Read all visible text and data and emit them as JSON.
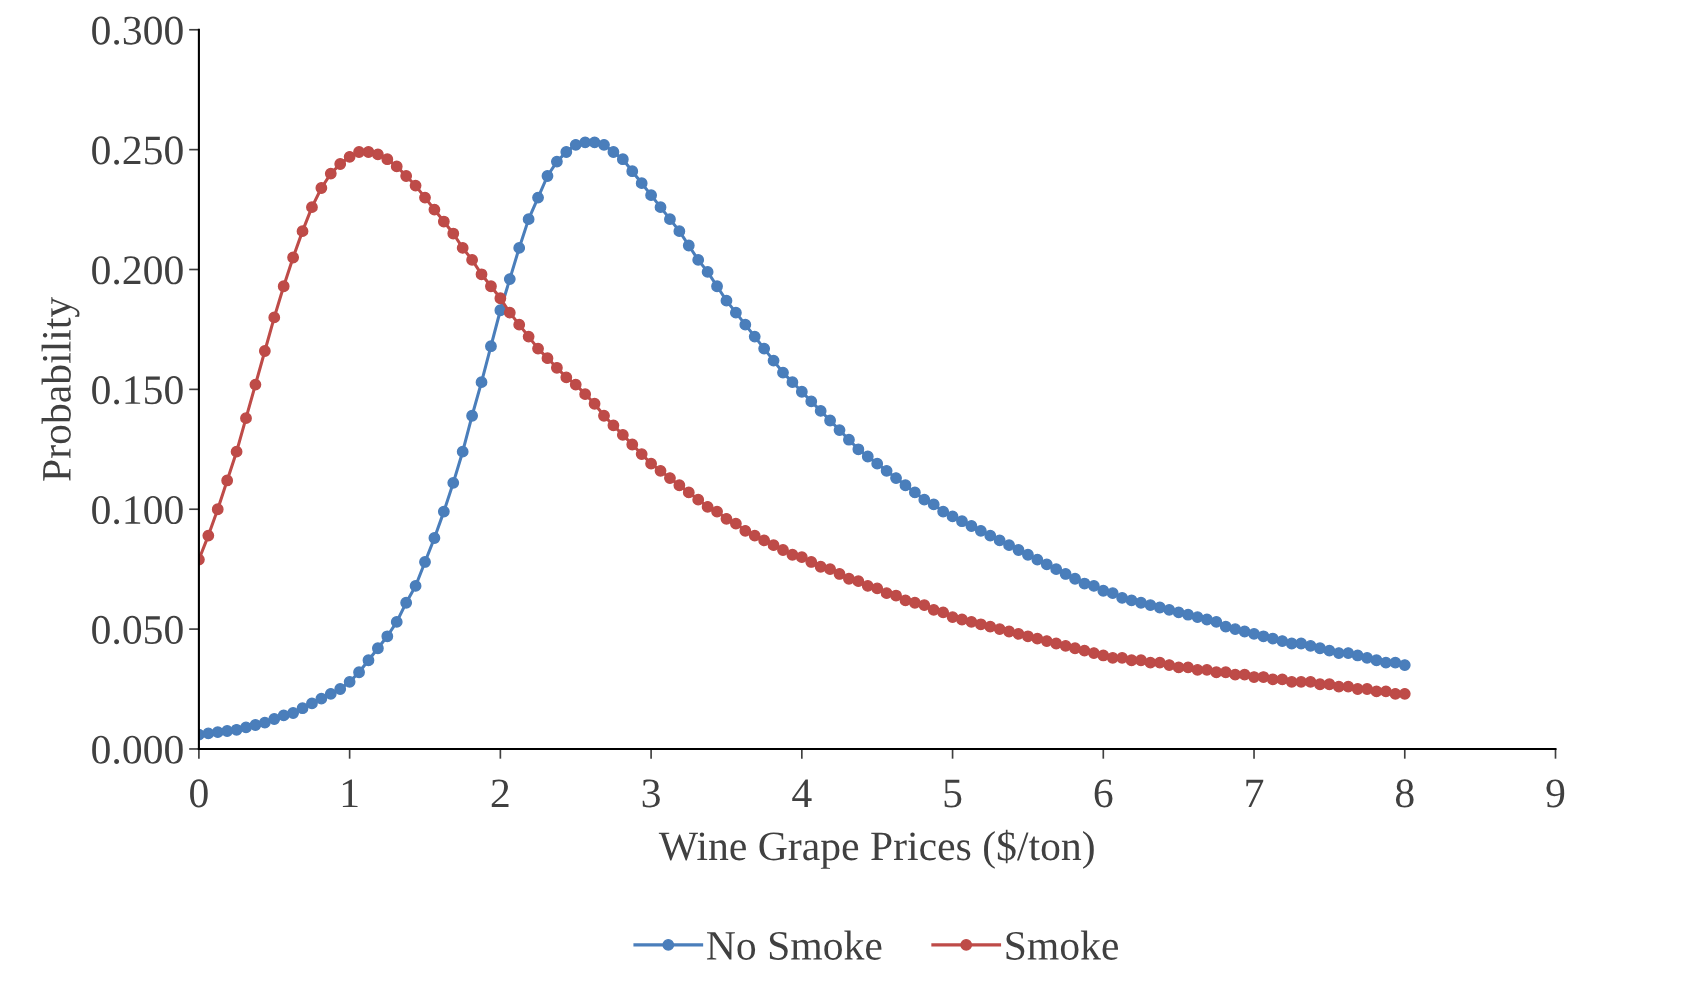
{
  "chart_data": {
    "type": "line",
    "xlabel": "Wine Grape Prices ($/ton)",
    "ylabel": "Probability",
    "x": [
      0,
      0.0625,
      0.125,
      0.1875,
      0.25,
      0.3125,
      0.375,
      0.4375,
      0.5,
      0.5625,
      0.625,
      0.6875,
      0.75,
      0.8125,
      0.875,
      0.9375,
      1,
      1.0625,
      1.125,
      1.1875,
      1.25,
      1.3125,
      1.375,
      1.4375,
      1.5,
      1.5625,
      1.625,
      1.6875,
      1.75,
      1.8125,
      1.875,
      1.9375,
      2,
      2.0625,
      2.125,
      2.1875,
      2.25,
      2.3125,
      2.375,
      2.4375,
      2.5,
      2.5625,
      2.625,
      2.6875,
      2.75,
      2.8125,
      2.875,
      2.9375,
      3,
      3.0625,
      3.125,
      3.1875,
      3.25,
      3.3125,
      3.375,
      3.4375,
      3.5,
      3.5625,
      3.625,
      3.6875,
      3.75,
      3.8125,
      3.875,
      3.9375,
      4,
      4.0625,
      4.125,
      4.1875,
      4.25,
      4.3125,
      4.375,
      4.4375,
      4.5,
      4.5625,
      4.625,
      4.6875,
      4.75,
      4.8125,
      4.875,
      4.9375,
      5,
      5.0625,
      5.125,
      5.1875,
      5.25,
      5.3125,
      5.375,
      5.4375,
      5.5,
      5.5625,
      5.625,
      5.6875,
      5.75,
      5.8125,
      5.875,
      5.9375,
      6,
      6.0625,
      6.125,
      6.1875,
      6.25,
      6.3125,
      6.375,
      6.4375,
      6.5,
      6.5625,
      6.625,
      6.6875,
      6.75,
      6.8125,
      6.875,
      6.9375,
      7,
      7.0625,
      7.125,
      7.1875,
      7.25,
      7.3125,
      7.375,
      7.4375,
      7.5,
      7.5625,
      7.625,
      7.6875,
      7.75,
      7.8125,
      7.875,
      7.9375,
      8
    ],
    "series": [
      {
        "name": "No Smoke",
        "color": "#4a7ebb",
        "values": [
          0.006,
          0.0065,
          0.007,
          0.0075,
          0.008,
          0.009,
          0.01,
          0.011,
          0.0125,
          0.014,
          0.015,
          0.017,
          0.019,
          0.021,
          0.023,
          0.025,
          0.028,
          0.032,
          0.037,
          0.042,
          0.047,
          0.053,
          0.061,
          0.068,
          0.078,
          0.088,
          0.099,
          0.111,
          0.124,
          0.139,
          0.153,
          0.168,
          0.183,
          0.196,
          0.209,
          0.221,
          0.23,
          0.239,
          0.245,
          0.249,
          0.252,
          0.253,
          0.253,
          0.252,
          0.249,
          0.246,
          0.241,
          0.236,
          0.231,
          0.226,
          0.221,
          0.216,
          0.21,
          0.204,
          0.199,
          0.193,
          0.187,
          0.182,
          0.177,
          0.172,
          0.167,
          0.162,
          0.157,
          0.153,
          0.149,
          0.145,
          0.141,
          0.137,
          0.133,
          0.129,
          0.125,
          0.122,
          0.119,
          0.116,
          0.113,
          0.11,
          0.107,
          0.104,
          0.102,
          0.099,
          0.097,
          0.095,
          0.093,
          0.091,
          0.089,
          0.087,
          0.085,
          0.083,
          0.081,
          0.079,
          0.077,
          0.075,
          0.073,
          0.071,
          0.069,
          0.068,
          0.066,
          0.065,
          0.063,
          0.062,
          0.061,
          0.06,
          0.059,
          0.058,
          0.057,
          0.056,
          0.055,
          0.054,
          0.053,
          0.051,
          0.05,
          0.049,
          0.048,
          0.047,
          0.046,
          0.045,
          0.044,
          0.044,
          0.043,
          0.042,
          0.041,
          0.04,
          0.04,
          0.039,
          0.038,
          0.037,
          0.036,
          0.036,
          0.035
        ]
      },
      {
        "name": "Smoke",
        "color": "#be4b48",
        "values": [
          0.079,
          0.089,
          0.1,
          0.112,
          0.124,
          0.138,
          0.152,
          0.166,
          0.18,
          0.193,
          0.205,
          0.216,
          0.226,
          0.234,
          0.24,
          0.244,
          0.247,
          0.249,
          0.249,
          0.248,
          0.246,
          0.243,
          0.239,
          0.235,
          0.23,
          0.225,
          0.22,
          0.215,
          0.209,
          0.204,
          0.198,
          0.193,
          0.188,
          0.182,
          0.177,
          0.172,
          0.167,
          0.163,
          0.159,
          0.155,
          0.152,
          0.148,
          0.144,
          0.139,
          0.135,
          0.131,
          0.127,
          0.123,
          0.119,
          0.116,
          0.113,
          0.11,
          0.107,
          0.104,
          0.101,
          0.099,
          0.096,
          0.094,
          0.091,
          0.089,
          0.087,
          0.085,
          0.083,
          0.081,
          0.08,
          0.078,
          0.076,
          0.075,
          0.073,
          0.071,
          0.07,
          0.068,
          0.067,
          0.065,
          0.064,
          0.062,
          0.061,
          0.06,
          0.058,
          0.057,
          0.055,
          0.054,
          0.053,
          0.052,
          0.051,
          0.05,
          0.049,
          0.048,
          0.047,
          0.046,
          0.045,
          0.044,
          0.043,
          0.042,
          0.041,
          0.04,
          0.039,
          0.038,
          0.038,
          0.037,
          0.037,
          0.036,
          0.036,
          0.035,
          0.034,
          0.034,
          0.033,
          0.033,
          0.032,
          0.032,
          0.031,
          0.031,
          0.03,
          0.03,
          0.029,
          0.029,
          0.028,
          0.028,
          0.028,
          0.027,
          0.027,
          0.026,
          0.026,
          0.025,
          0.025,
          0.024,
          0.024,
          0.023,
          0.023
        ]
      }
    ],
    "xlim": [
      0,
      9
    ],
    "xticks": [
      0,
      1,
      2,
      3,
      4,
      5,
      6,
      7,
      8,
      9
    ],
    "ylim": [
      0,
      0.3
    ],
    "yticks": [
      {
        "value": 0,
        "label": "0.000"
      },
      {
        "value": 0.05,
        "label": "0.050"
      },
      {
        "value": 0.1,
        "label": "0.100"
      },
      {
        "value": 0.15,
        "label": "0.150"
      },
      {
        "value": 0.2,
        "label": "0.200"
      },
      {
        "value": 0.25,
        "label": "0.250"
      },
      {
        "value": 0.3,
        "label": "0.300"
      }
    ],
    "grid": false,
    "legend": "bottom",
    "marker": "circle",
    "line_style": "solid"
  }
}
